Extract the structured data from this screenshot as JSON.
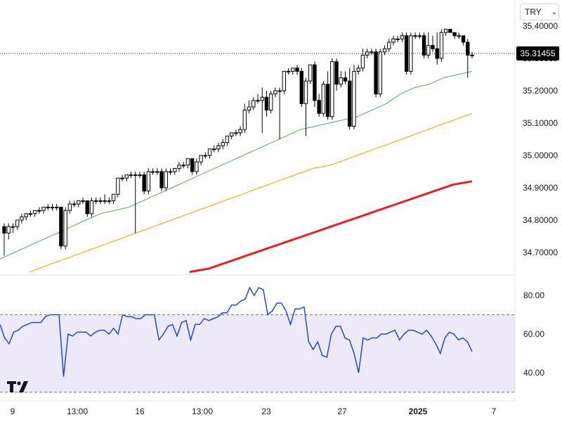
{
  "currency_selector": {
    "label": "TRY"
  },
  "last_price": {
    "label": "35.31455",
    "value": 35.31455
  },
  "colors": {
    "up_candle": "#ffffff",
    "down_candle": "#000000",
    "candle_border": "#000000",
    "ma_fast": "#4caf50",
    "ma_mid": "#ff9800",
    "ma_slow": "#e91e1e",
    "rsi_line": "#2448d6",
    "rsi_band": "#ede9f8"
  },
  "chart_data": [
    {
      "type": "candlestick",
      "y_ticks": [
        {
          "value": 35.4,
          "label": "35.40000"
        },
        {
          "value": 35.3,
          "label": "35.30000"
        },
        {
          "value": 35.2,
          "label": "35.20000"
        },
        {
          "value": 35.1,
          "label": "35.10000"
        },
        {
          "value": 35.0,
          "label": "35.00000"
        },
        {
          "value": 34.9,
          "label": "34.90000"
        },
        {
          "value": 34.8,
          "label": "34.80000"
        },
        {
          "value": 34.7,
          "label": "34.70000"
        }
      ],
      "x_ticks": [
        "9",
        "13:00",
        "16",
        "13:00",
        "23",
        "27",
        "2025",
        "7"
      ],
      "candles": [
        [
          34.78,
          34.79,
          34.69,
          34.76
        ],
        [
          34.76,
          34.79,
          34.74,
          34.78
        ],
        [
          34.78,
          34.79,
          34.76,
          34.78
        ],
        [
          34.78,
          34.8,
          34.77,
          34.8
        ],
        [
          34.8,
          34.82,
          34.79,
          34.81
        ],
        [
          34.81,
          34.82,
          34.8,
          34.82
        ],
        [
          34.82,
          34.83,
          34.81,
          34.82
        ],
        [
          34.82,
          34.83,
          34.81,
          34.83
        ],
        [
          34.83,
          34.84,
          34.82,
          34.83
        ],
        [
          34.83,
          34.84,
          34.82,
          34.84
        ],
        [
          34.84,
          34.85,
          34.83,
          34.84
        ],
        [
          34.84,
          34.85,
          34.83,
          34.84
        ],
        [
          34.84,
          34.85,
          34.83,
          34.84
        ],
        [
          34.84,
          34.84,
          34.71,
          34.72
        ],
        [
          34.72,
          34.84,
          34.71,
          34.83
        ],
        [
          34.83,
          34.86,
          34.82,
          34.85
        ],
        [
          34.85,
          34.86,
          34.84,
          34.85
        ],
        [
          34.85,
          34.86,
          34.84,
          34.86
        ],
        [
          34.86,
          34.87,
          34.85,
          34.86
        ],
        [
          34.86,
          34.86,
          34.81,
          34.82
        ],
        [
          34.82,
          34.87,
          34.81,
          34.86
        ],
        [
          34.86,
          34.87,
          34.85,
          34.86
        ],
        [
          34.86,
          34.87,
          34.85,
          34.86
        ],
        [
          34.86,
          34.88,
          34.85,
          34.86
        ],
        [
          34.86,
          34.87,
          34.85,
          34.86
        ],
        [
          34.86,
          34.88,
          34.85,
          34.88
        ],
        [
          34.88,
          34.93,
          34.87,
          34.93
        ],
        [
          34.93,
          34.94,
          34.92,
          34.93
        ],
        [
          34.93,
          34.94,
          34.92,
          34.94
        ],
        [
          34.94,
          34.95,
          34.93,
          34.94
        ],
        [
          34.94,
          34.95,
          34.76,
          34.94
        ],
        [
          34.94,
          34.95,
          34.93,
          34.94
        ],
        [
          34.94,
          34.95,
          34.88,
          34.89
        ],
        [
          34.89,
          34.96,
          34.88,
          34.95
        ],
        [
          34.95,
          34.96,
          34.94,
          34.95
        ],
        [
          34.95,
          34.96,
          34.94,
          34.95
        ],
        [
          34.95,
          34.96,
          34.89,
          34.9
        ],
        [
          34.9,
          34.96,
          34.89,
          34.95
        ],
        [
          34.95,
          34.96,
          34.94,
          34.95
        ],
        [
          34.95,
          34.96,
          34.94,
          34.96
        ],
        [
          34.96,
          34.98,
          34.95,
          34.97
        ],
        [
          34.97,
          34.98,
          34.96,
          34.97
        ],
        [
          34.97,
          34.99,
          34.96,
          34.99
        ],
        [
          34.99,
          34.99,
          34.94,
          34.95
        ],
        [
          34.95,
          34.99,
          34.94,
          34.98
        ],
        [
          34.98,
          35.0,
          34.97,
          35.0
        ],
        [
          35.0,
          35.01,
          34.99,
          35.0
        ],
        [
          35.0,
          35.02,
          34.99,
          35.02
        ],
        [
          35.02,
          35.03,
          35.01,
          35.02
        ],
        [
          35.02,
          35.04,
          35.01,
          35.03
        ],
        [
          35.03,
          35.05,
          35.02,
          35.04
        ],
        [
          35.04,
          35.06,
          35.03,
          35.06
        ],
        [
          35.06,
          35.07,
          35.05,
          35.07
        ],
        [
          35.07,
          35.08,
          35.06,
          35.07
        ],
        [
          35.07,
          35.09,
          35.06,
          35.08
        ],
        [
          35.08,
          35.16,
          35.07,
          35.14
        ],
        [
          35.14,
          35.17,
          35.13,
          35.15
        ],
        [
          35.15,
          35.18,
          35.14,
          35.17
        ],
        [
          35.17,
          35.19,
          35.16,
          35.17
        ],
        [
          35.17,
          35.21,
          35.07,
          35.18
        ],
        [
          35.18,
          35.2,
          35.12,
          35.14
        ],
        [
          35.14,
          35.2,
          35.13,
          35.19
        ],
        [
          35.19,
          35.21,
          35.18,
          35.2
        ],
        [
          35.2,
          35.21,
          35.05,
          35.2
        ],
        [
          35.2,
          35.26,
          35.19,
          35.26
        ],
        [
          35.26,
          35.27,
          35.25,
          35.26
        ],
        [
          35.26,
          35.27,
          35.25,
          35.27
        ],
        [
          35.27,
          35.28,
          35.25,
          35.26
        ],
        [
          35.26,
          35.27,
          35.15,
          35.16
        ],
        [
          35.16,
          35.24,
          35.06,
          35.23
        ],
        [
          35.23,
          35.28,
          35.22,
          35.28
        ],
        [
          35.28,
          35.29,
          35.15,
          35.17
        ],
        [
          35.17,
          35.19,
          35.12,
          35.13
        ],
        [
          35.13,
          35.23,
          35.12,
          35.22
        ],
        [
          35.22,
          35.26,
          35.11,
          35.12
        ],
        [
          35.12,
          35.3,
          35.11,
          35.29
        ],
        [
          35.29,
          35.3,
          35.2,
          35.22
        ],
        [
          35.22,
          35.26,
          35.21,
          35.24
        ],
        [
          35.24,
          35.26,
          35.22,
          35.23
        ],
        [
          35.23,
          35.27,
          35.08,
          35.09
        ],
        [
          35.09,
          35.28,
          35.08,
          35.26
        ],
        [
          35.26,
          35.28,
          35.25,
          35.27
        ],
        [
          35.27,
          35.33,
          35.26,
          35.31
        ],
        [
          35.31,
          35.33,
          35.3,
          35.32
        ],
        [
          35.32,
          35.33,
          35.31,
          35.32
        ],
        [
          35.32,
          35.33,
          35.18,
          35.19
        ],
        [
          35.19,
          35.33,
          35.18,
          35.32
        ],
        [
          35.32,
          35.34,
          35.31,
          35.33
        ],
        [
          35.33,
          35.36,
          35.32,
          35.35
        ],
        [
          35.35,
          35.37,
          35.34,
          35.36
        ],
        [
          35.36,
          35.37,
          35.35,
          35.36
        ],
        [
          35.36,
          35.38,
          35.35,
          35.37
        ],
        [
          35.37,
          35.38,
          35.25,
          35.26
        ],
        [
          35.26,
          35.38,
          35.25,
          35.37
        ],
        [
          35.37,
          35.38,
          35.36,
          35.37
        ],
        [
          35.37,
          35.38,
          35.36,
          35.37
        ],
        [
          35.37,
          35.38,
          35.3,
          35.31
        ],
        [
          35.31,
          35.38,
          35.3,
          35.34
        ],
        [
          35.34,
          35.37,
          35.32,
          35.33
        ],
        [
          35.33,
          35.38,
          35.28,
          35.3
        ],
        [
          35.3,
          35.39,
          35.29,
          35.38
        ],
        [
          35.38,
          35.39,
          35.37,
          35.39
        ],
        [
          35.39,
          35.39,
          35.38,
          35.38
        ],
        [
          35.38,
          35.38,
          35.36,
          35.37
        ],
        [
          35.37,
          35.38,
          35.36,
          35.37
        ],
        [
          35.37,
          35.37,
          35.34,
          35.35
        ],
        [
          35.35,
          35.36,
          35.24,
          35.31
        ],
        [
          35.31,
          35.32,
          35.3,
          35.31
        ]
      ],
      "ma_fast": [
        34.68,
        34.7,
        34.72,
        34.74,
        34.76,
        34.78,
        34.8,
        34.82,
        34.83,
        34.84,
        34.86,
        34.88,
        34.9,
        34.92,
        34.94,
        34.96,
        34.98,
        35.0,
        35.02,
        35.04,
        35.06,
        35.08,
        35.09,
        35.1,
        35.11,
        35.12,
        35.14,
        35.16,
        35.19,
        35.21,
        35.22,
        35.24,
        35.25,
        35.26
      ],
      "ma_mid": [
        34.64,
        34.66,
        34.68,
        34.7,
        34.72,
        34.74,
        34.76,
        34.78,
        34.8,
        34.82,
        34.84,
        34.86,
        34.88,
        34.9,
        34.92,
        34.94,
        34.96,
        34.97,
        34.99,
        35.01,
        35.03,
        35.05,
        35.07,
        35.09,
        35.11,
        35.13
      ],
      "ma_slow": [
        34.64,
        34.65,
        34.67,
        34.69,
        34.71,
        34.73,
        34.75,
        34.77,
        34.79,
        34.81,
        34.83,
        34.85,
        34.87,
        34.89,
        34.91,
        34.92
      ]
    },
    {
      "type": "line",
      "y_ticks": [
        {
          "value": 80,
          "label": "80.00"
        },
        {
          "value": 60,
          "label": "60.00"
        },
        {
          "value": 40,
          "label": "40.00"
        }
      ],
      "bands": {
        "upper": 70,
        "lower": 30
      },
      "values": [
        65,
        58,
        55,
        61,
        62,
        64,
        65,
        66,
        66,
        66,
        69,
        70,
        70,
        70,
        38,
        60,
        59,
        61,
        61,
        61,
        59,
        61,
        62,
        62,
        60,
        63,
        60,
        70,
        69,
        69,
        68,
        68,
        70,
        70,
        70,
        57,
        60,
        64,
        65,
        59,
        66,
        67,
        57,
        65,
        65,
        68,
        67,
        68,
        69,
        71,
        71,
        75,
        75,
        77,
        78,
        84,
        80,
        84,
        83,
        70,
        72,
        76,
        76,
        72,
        65,
        73,
        73,
        74,
        56,
        52,
        56,
        49,
        48,
        60,
        64,
        64,
        58,
        57,
        50,
        40,
        58,
        57,
        58,
        58,
        60,
        60,
        61,
        62,
        57,
        60,
        62,
        62,
        61,
        60,
        62,
        59,
        55,
        50,
        58,
        61,
        60,
        57,
        58,
        56,
        51
      ]
    }
  ]
}
